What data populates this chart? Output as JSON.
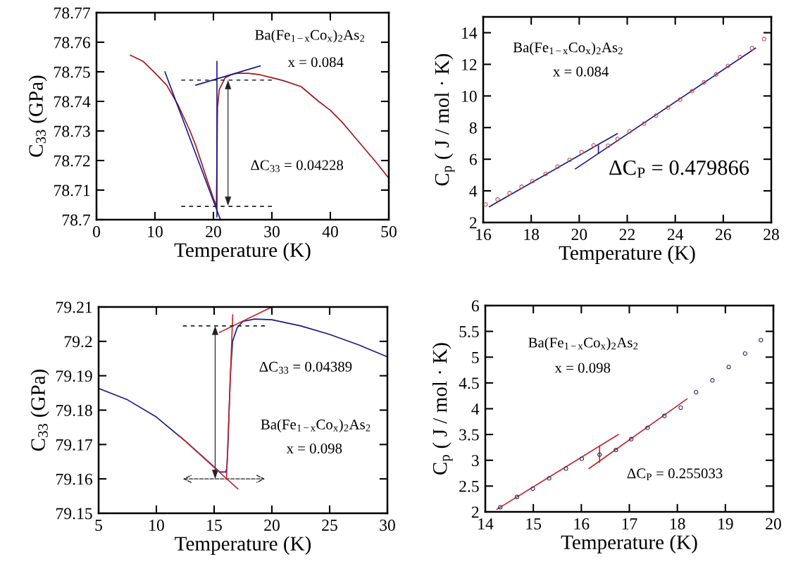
{
  "chart_data": [
    {
      "type": "line",
      "xlabel": "Temperature (K)",
      "ylabel": "C$_{33}$ (GPa)",
      "xlim": [
        0,
        50
      ],
      "ylim": [
        78.7,
        78.77
      ],
      "xticks": [
        0,
        10,
        20,
        30,
        40,
        50
      ],
      "yticks": [
        78.7,
        78.71,
        78.72,
        78.73,
        78.74,
        78.75,
        78.76,
        78.77
      ],
      "grid": false,
      "legend": false,
      "annotations": [
        "Ba(Fe$_{1−x}$Co$_{x}$)$_{2}$As$_{2}$",
        "x = 0.084",
        "ΔC$_{33}$ = 0.04228"
      ],
      "series": [
        {
          "color": "#a01818",
          "marker": "none",
          "line_style": "solid",
          "x": [
            5.8,
            8,
            10,
            12,
            14,
            16,
            17,
            18,
            19,
            20,
            20.5,
            20.6,
            20.7,
            21,
            21.5,
            22,
            23,
            24,
            26,
            28,
            30,
            32,
            35,
            38,
            40,
            42,
            45,
            48,
            50
          ],
          "values": [
            78.7556,
            78.7535,
            78.7496,
            78.7455,
            78.7386,
            78.73,
            78.725,
            78.719,
            78.713,
            78.7072,
            78.7047,
            78.72,
            78.738,
            78.744,
            78.746,
            78.748,
            78.749,
            78.7495,
            78.7495,
            78.749,
            78.748,
            78.747,
            78.745,
            78.74,
            78.737,
            78.733,
            78.726,
            78.719,
            78.714
          ]
        },
        {
          "type": "line",
          "color": "#1a1a8c",
          "marker": "none",
          "line_style": "solid",
          "x": [
            11.7,
            21.2
          ],
          "values": [
            78.75,
            78.7
          ]
        },
        {
          "type": "line",
          "color": "#1a1a8c",
          "marker": "none",
          "line_style": "solid",
          "x": [
            20.6,
            20.6
          ],
          "values": [
            78.701,
            78.7535
          ]
        },
        {
          "type": "line",
          "color": "#1a1a8c",
          "marker": "none",
          "line_style": "solid",
          "x": [
            17,
            28
          ],
          "values": [
            78.7455,
            78.752
          ]
        },
        {
          "type": "line",
          "color": "#222222",
          "marker": "none",
          "line_style": "dashed",
          "x": [
            14.5,
            30
          ],
          "values": [
            78.7472,
            78.7472
          ]
        },
        {
          "type": "line",
          "color": "#222222",
          "marker": "none",
          "line_style": "dashed",
          "x": [
            14.5,
            30
          ],
          "values": [
            78.7045,
            78.7045
          ]
        }
      ]
    },
    {
      "type": "line",
      "xlabel": "Temperature (K)",
      "ylabel": "C$_{p}$ ( J / mol · K)",
      "xlim": [
        16,
        28
      ],
      "ylim": [
        2,
        15
      ],
      "xticks": [
        16,
        18,
        20,
        22,
        24,
        26,
        28
      ],
      "yticks": [
        2,
        4,
        6,
        8,
        10,
        12,
        14
      ],
      "grid": false,
      "legend": false,
      "annotations": [
        "Ba(Fe$_{1−x}$Co$_{x}$)$_{2}$As$_{2}$",
        "x = 0.084",
        "ΔC$_{P}$ = 0.479866"
      ],
      "series": [
        {
          "type": "scatter",
          "color": "#c05050",
          "marker": "circle",
          "x": [
            16.1,
            16.6,
            17.1,
            17.6,
            18.05,
            18.6,
            19.1,
            19.6,
            20.1,
            20.6,
            21.2,
            21.6,
            22.1,
            22.7,
            23.2,
            23.7,
            24.2,
            24.7,
            25.2,
            25.7,
            26.2,
            26.7,
            27.2,
            27.7
          ],
          "values": [
            3.14,
            3.46,
            3.86,
            4.26,
            4.62,
            5.07,
            5.53,
            5.96,
            6.45,
            6.88,
            6.85,
            7.28,
            7.77,
            8.25,
            8.76,
            9.27,
            9.77,
            10.31,
            10.86,
            11.36,
            11.9,
            12.45,
            13.02,
            13.6
          ]
        },
        {
          "type": "line",
          "color": "#1a1a8c",
          "marker": "none",
          "line_style": "solid",
          "x": [
            16.26,
            21.58
          ],
          "values": [
            3.0,
            7.61
          ]
        },
        {
          "type": "line",
          "color": "#1a1a8c",
          "marker": "none",
          "line_style": "solid",
          "x": [
            19.84,
            27.34
          ],
          "values": [
            5.39,
            13.02
          ]
        },
        {
          "type": "line",
          "color": "#1a1a8c",
          "marker": "none",
          "line_style": "solid",
          "x": [
            20.8,
            20.8
          ],
          "values": [
            6.85,
            6.37
          ]
        }
      ]
    },
    {
      "type": "line",
      "xlabel": "Temperature (K)",
      "ylabel": "C$_{33}$ (GPa)",
      "xlim": [
        5,
        30
      ],
      "ylim": [
        79.15,
        79.21
      ],
      "xticks": [
        5,
        10,
        15,
        20,
        25,
        30
      ],
      "yticks": [
        79.15,
        79.16,
        79.17,
        79.18,
        79.19,
        79.2,
        79.21
      ],
      "grid": false,
      "legend": false,
      "annotations": [
        "ΔC$_{33}$ = 0.04389",
        "Ba(Fe$_{1−x}$Co$_{x}$)$_{2}$As$_{2}$",
        "x = 0.098"
      ],
      "series": [
        {
          "color": "#1a1a8c",
          "marker": "none",
          "line_style": "solid",
          "x": [
            5.1,
            7.5,
            10,
            12.5,
            14,
            15,
            15.5,
            16,
            16.1,
            16.2,
            16.4,
            16.6,
            17,
            17.5,
            18.5,
            20,
            22.5,
            25,
            27.5,
            30
          ],
          "values": [
            79.1862,
            79.183,
            79.178,
            79.171,
            79.1665,
            79.1635,
            79.162,
            79.162,
            79.163,
            79.17,
            79.19,
            79.2,
            79.204,
            79.2058,
            79.2065,
            79.2063,
            79.2045,
            79.202,
            79.199,
            79.1955
          ]
        },
        {
          "type": "line",
          "color": "#c0282d",
          "marker": "none",
          "line_style": "solid",
          "x": [
            12,
            17.05
          ],
          "values": [
            79.1725,
            79.1571
          ]
        },
        {
          "type": "line",
          "color": "#c0282d",
          "marker": "none",
          "line_style": "solid",
          "x": [
            16.07,
            16.61
          ],
          "values": [
            79.1599,
            79.2077
          ]
        },
        {
          "type": "line",
          "color": "#c0282d",
          "marker": "none",
          "line_style": "solid",
          "x": [
            15.46,
            20.0
          ],
          "values": [
            79.2026,
            79.21
          ]
        },
        {
          "type": "line",
          "color": "#222222",
          "marker": "none",
          "line_style": "dashed",
          "x": [
            12.3,
            19.4
          ],
          "values": [
            79.2045,
            79.2045
          ]
        }
      ]
    },
    {
      "type": "line",
      "xlabel": "Temperature (K)",
      "ylabel": "C$_{p}$ ( J / mol · K)",
      "xlim": [
        14,
        20
      ],
      "ylim": [
        2,
        6
      ],
      "xticks": [
        14,
        15,
        16,
        17,
        18,
        19,
        20
      ],
      "yticks": [
        2,
        2.5,
        3,
        3.5,
        4,
        4.5,
        5,
        5.5,
        6
      ],
      "grid": false,
      "legend": false,
      "annotations": [
        "Ba(Fe$_{1−x}$Co$_{x}$)$_{2}$As$_{2}$",
        "x = 0.098",
        "ΔC$_{P}$ = 0.255033"
      ],
      "series": [
        {
          "type": "scatter",
          "color": "#2a2a6a",
          "marker": "circle",
          "x": [
            14.31,
            14.66,
            14.99,
            15.33,
            15.68,
            16.01,
            16.38,
            16.72,
            17.04,
            17.38,
            17.73,
            18.07,
            18.39,
            18.73,
            19.07,
            19.41,
            19.74
          ],
          "values": [
            2.09,
            2.29,
            2.45,
            2.65,
            2.84,
            3.03,
            3.11,
            3.2,
            3.41,
            3.63,
            3.86,
            4.02,
            4.32,
            4.55,
            4.81,
            5.07,
            5.33
          ]
        },
        {
          "type": "line",
          "color": "#c0282d",
          "marker": "none",
          "line_style": "solid",
          "x": [
            14.24,
            16.77
          ],
          "values": [
            2.05,
            3.5
          ]
        },
        {
          "type": "line",
          "color": "#c0282d",
          "marker": "none",
          "line_style": "solid",
          "x": [
            16.16,
            18.2
          ],
          "values": [
            2.84,
            4.19
          ]
        },
        {
          "type": "line",
          "color": "#c0282d",
          "marker": "none",
          "line_style": "solid",
          "x": [
            16.38,
            16.38
          ],
          "values": [
            3.28,
            2.96
          ]
        }
      ]
    }
  ]
}
